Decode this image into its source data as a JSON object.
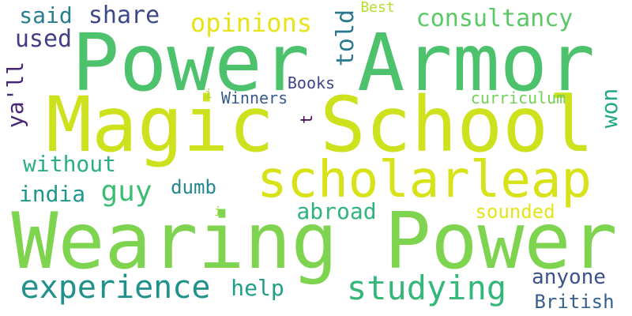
{
  "words": [
    {
      "text": "Power Armor",
      "color": "#4cc26c",
      "rotated": false
    },
    {
      "text": "Magic School",
      "color": "#cde11d",
      "rotated": false
    },
    {
      "text": "Wearing Power",
      "color": "#7ed34f",
      "rotated": false
    },
    {
      "text": "scholarleap",
      "color": "#d8e219",
      "rotated": false
    },
    {
      "text": "experience",
      "color": "#21918c",
      "rotated": false
    },
    {
      "text": "studying",
      "color": "#35b779",
      "rotated": false
    },
    {
      "text": "consultancy",
      "color": "#5ac864",
      "rotated": false
    },
    {
      "text": "opinions",
      "color": "#e6e419",
      "rotated": false
    },
    {
      "text": "share",
      "color": "#3e4989",
      "rotated": false
    },
    {
      "text": "said",
      "color": "#287d8e",
      "rotated": false
    },
    {
      "text": "used",
      "color": "#433e85",
      "rotated": false
    },
    {
      "text": "told",
      "color": "#2a788e",
      "rotated": true
    },
    {
      "text": "ya'll",
      "color": "#482677",
      "rotated": true
    },
    {
      "text": "won",
      "color": "#22a884",
      "rotated": true
    },
    {
      "text": "guy",
      "color": "#3dbc74",
      "rotated": false
    },
    {
      "text": "without",
      "color": "#2ab07f",
      "rotated": false
    },
    {
      "text": "india",
      "color": "#1f988b",
      "rotated": false
    },
    {
      "text": "dumb",
      "color": "#24868e",
      "rotated": false
    },
    {
      "text": "abroad",
      "color": "#2fb47c",
      "rotated": false
    },
    {
      "text": "sounded",
      "color": "#e5e419",
      "rotated": false
    },
    {
      "text": "anyone",
      "color": "#3b528b",
      "rotated": false
    },
    {
      "text": "British",
      "color": "#355f8d",
      "rotated": false
    },
    {
      "text": "help",
      "color": "#1f9e89",
      "rotated": false
    },
    {
      "text": "Books",
      "color": "#414487",
      "rotated": false
    },
    {
      "text": "Winners",
      "color": "#38598c",
      "rotated": false
    },
    {
      "text": "curriculum",
      "color": "#73d056",
      "rotated": false
    },
    {
      "text": "Best",
      "color": "#b5de2b",
      "rotated": false
    },
    {
      "text": "t",
      "color": "#440154",
      "rotated": true
    },
    {
      "text": "i",
      "color": "#a8db34",
      "rotated": false
    },
    {
      "text": "i",
      "color": "#95d840",
      "rotated": false
    }
  ]
}
